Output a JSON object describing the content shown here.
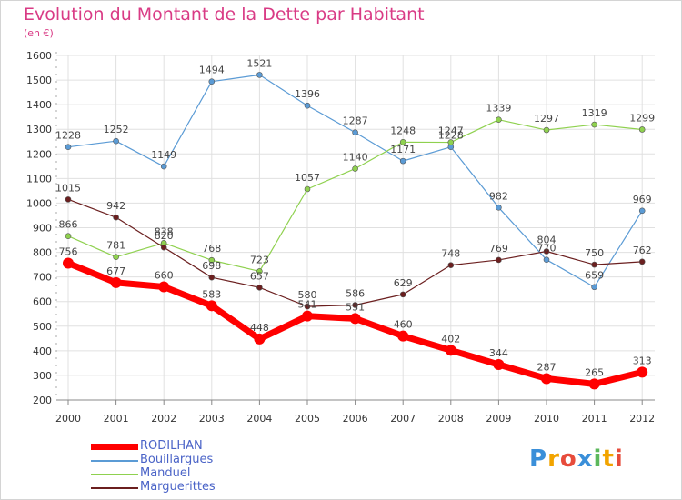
{
  "title": "Evolution du Montant de la Dette par Habitant",
  "unit": "(en €)",
  "logo": "Proxiti",
  "colors": {
    "title": "#d93b85",
    "grid": "#d6d6d6",
    "axis_text": "#333333",
    "legend_text": "#4a63c7"
  },
  "chart_data": {
    "type": "line",
    "title": "Evolution du Montant de la Dette par Habitant",
    "subtitle": "(en €)",
    "xlabel": "",
    "ylabel": "",
    "x": [
      "2000",
      "2001",
      "2002",
      "2003",
      "2004",
      "2005",
      "2006",
      "2007",
      "2008",
      "2009",
      "2010",
      "2011",
      "2012"
    ],
    "ylim": [
      200,
      1600
    ],
    "yticks": [
      200,
      300,
      400,
      500,
      600,
      700,
      800,
      900,
      1000,
      1100,
      1200,
      1300,
      1400,
      1500,
      1600
    ],
    "grid": true,
    "legend_position": "bottom-left",
    "series": [
      {
        "name": "RODILHAN",
        "color": "#ff0000",
        "values": [
          756,
          677,
          660,
          583,
          448,
          541,
          531,
          460,
          402,
          344,
          287,
          265,
          313
        ],
        "labels": [
          "756",
          "677",
          "660",
          "583",
          "448",
          "",
          "",
          "460",
          "402",
          "344",
          "287",
          "265",
          "313"
        ]
      },
      {
        "name": "Bouillargues",
        "color": "#5b9bd5",
        "values": [
          1228,
          1252,
          1149,
          1494,
          1521,
          1396,
          1287,
          1171,
          1228,
          982,
          770,
          659,
          969
        ],
        "labels": [
          "1228",
          "1252",
          "1149",
          "1494",
          "1521",
          "1396",
          "1287",
          "1171",
          "1228",
          "982",
          "770",
          "659",
          "969"
        ]
      },
      {
        "name": "Manduel",
        "color": "#8fd14f",
        "values": [
          866,
          781,
          838,
          768,
          723,
          1057,
          1140,
          1248,
          1247,
          1339,
          1297,
          1319,
          1299
        ],
        "labels": [
          "866",
          "781",
          "838",
          "768",
          "723",
          "1057",
          "1140",
          "1248",
          "1247",
          "1339",
          "1297",
          "1319",
          "1299"
        ]
      },
      {
        "name": "Marguerittes",
        "color": "#6b1f1f",
        "values": [
          1015,
          942,
          820,
          698,
          657,
          580,
          586,
          629,
          748,
          769,
          804,
          750,
          762
        ],
        "labels": [
          "1015",
          "942",
          "820",
          "698",
          "657",
          "580",
          "586",
          "629",
          "748",
          "769",
          "804",
          "750",
          "762"
        ]
      }
    ],
    "extra_labels": [
      {
        "series": "RODILHAN",
        "index": 5,
        "text": "541"
      },
      {
        "series": "RODILHAN",
        "index": 6,
        "text": "531"
      }
    ]
  }
}
